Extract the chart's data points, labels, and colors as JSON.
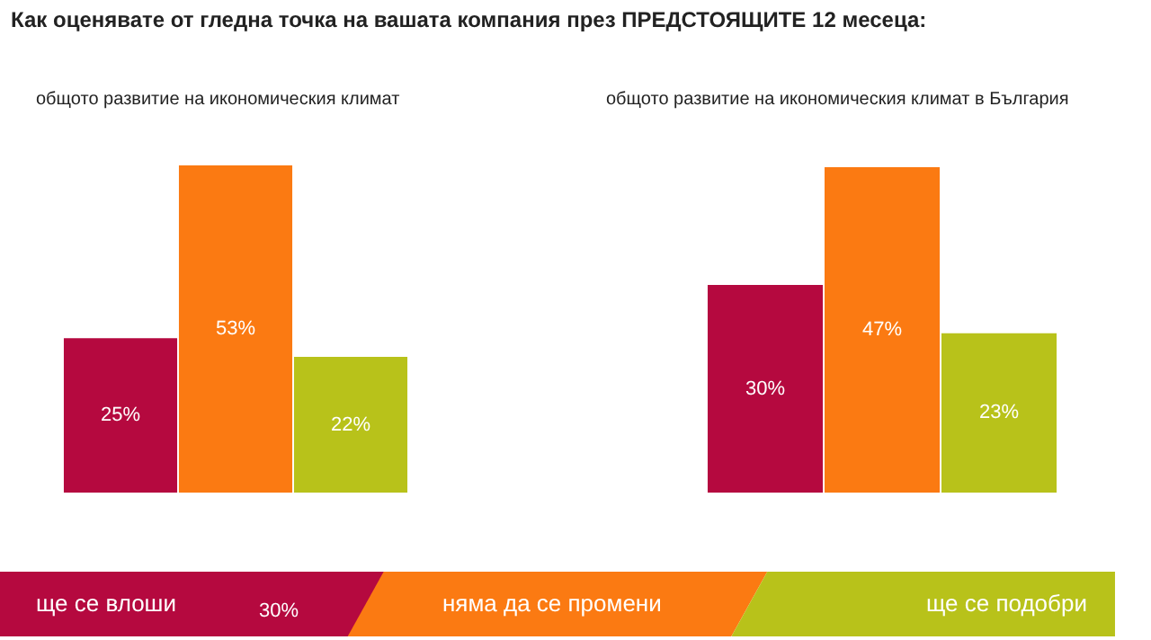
{
  "chart_data": [
    {
      "type": "bar",
      "title": "Как оценявате от гледна точка на вашата компания през ПРЕДСТОЯЩИТЕ 12 месеца:",
      "subtitle": "общото развитие на икономическия климат",
      "categories": [
        null
      ],
      "series": [
        {
          "name": "ще се влоши",
          "color": "#b5093f",
          "values": [
            25
          ],
          "value_labels": [
            "25%"
          ]
        },
        {
          "name": "няма да се промени",
          "color": "#fb7a12",
          "values": [
            53
          ],
          "value_labels": [
            "53%"
          ]
        },
        {
          "name": "ще се подобри",
          "color": "#b8c21a",
          "values": [
            22
          ],
          "value_labels": [
            "22%"
          ]
        }
      ],
      "tick_labels": false,
      "legend": "bottom",
      "annotations": [
        "30%"
      ]
    },
    {
      "type": "bar",
      "subtitle": "общото развитие на икономическия климат в България",
      "categories": [
        null
      ],
      "series": [
        {
          "color": "#b5093f",
          "values": [
            30
          ],
          "value_labels": [
            "30%"
          ]
        },
        {
          "color": "#fb7a12",
          "values": [
            47
          ],
          "value_labels": [
            "47%"
          ]
        },
        {
          "color": "#b8c21a",
          "values": [
            23
          ],
          "value_labels": [
            "23%"
          ]
        }
      ],
      "tick_labels": false
    }
  ]
}
